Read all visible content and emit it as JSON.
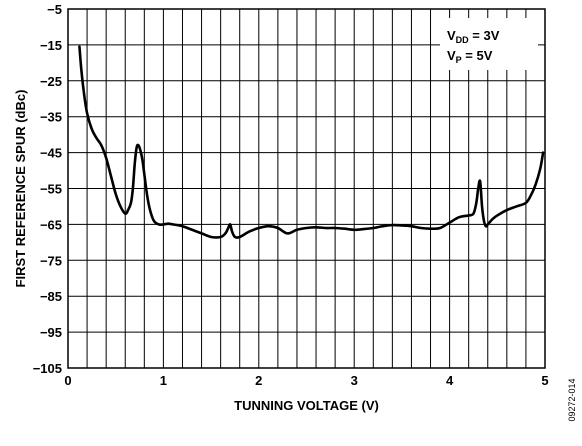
{
  "chart_data": {
    "type": "line",
    "xlabel": "TUNNING VOLTAGE (V)",
    "ylabel": "FIRST REFERENCE SPUR (dBc)",
    "xlim": [
      0,
      5
    ],
    "ylim": [
      -105,
      -5
    ],
    "x_ticks": [
      "0",
      "1",
      "2",
      "3",
      "4",
      "5"
    ],
    "y_ticks": [
      "−5",
      "−15",
      "−25",
      "−35",
      "−45",
      "−55",
      "−65",
      "−75",
      "−85",
      "−95",
      "−105"
    ],
    "grid": true,
    "legend": {
      "placement": "top-right",
      "lines": [
        {
          "main": "V",
          "sub": "DD",
          "rest": " = 3V"
        },
        {
          "main": "V",
          "sub": "P",
          "rest": " = 5V"
        }
      ]
    },
    "series": [
      {
        "x": [
          0.12,
          0.14,
          0.17,
          0.2,
          0.25,
          0.3,
          0.35,
          0.4,
          0.45,
          0.5,
          0.55,
          0.6,
          0.63,
          0.66,
          0.68,
          0.7,
          0.72,
          0.74,
          0.76,
          0.78,
          0.8,
          0.83,
          0.86,
          0.9,
          0.95,
          1.0,
          1.05,
          1.1,
          1.2,
          1.3,
          1.4,
          1.5,
          1.6,
          1.65,
          1.68,
          1.7,
          1.72,
          1.75,
          1.8,
          1.9,
          2.0,
          2.1,
          2.2,
          2.3,
          2.4,
          2.5,
          2.6,
          2.7,
          2.8,
          2.9,
          3.0,
          3.1,
          3.2,
          3.3,
          3.4,
          3.5,
          3.6,
          3.7,
          3.8,
          3.9,
          4.0,
          4.1,
          4.2,
          4.25,
          4.28,
          4.3,
          4.32,
          4.34,
          4.36,
          4.38,
          4.4,
          4.45,
          4.5,
          4.6,
          4.7,
          4.8,
          4.85,
          4.9,
          4.95,
          4.98
        ],
        "y": [
          -15.5,
          -22,
          -29,
          -34,
          -38.5,
          -41,
          -43,
          -46.5,
          -51.5,
          -56.5,
          -60,
          -62,
          -61,
          -59,
          -55,
          -48,
          -43.5,
          -43,
          -44.5,
          -47,
          -51,
          -57,
          -61,
          -64,
          -65,
          -65,
          -64.8,
          -65,
          -65.5,
          -66.5,
          -67.5,
          -68.5,
          -68.5,
          -67.5,
          -66,
          -65,
          -67,
          -68.5,
          -68.5,
          -67,
          -66,
          -65.5,
          -66,
          -67.5,
          -66.5,
          -66,
          -65.8,
          -66,
          -66,
          -66.2,
          -66.5,
          -66.3,
          -66,
          -65.5,
          -65.2,
          -65.3,
          -65.5,
          -66,
          -66.2,
          -66,
          -64.5,
          -63,
          -62.5,
          -62,
          -59,
          -55,
          -53,
          -60,
          -64,
          -65.5,
          -65,
          -63.5,
          -62.5,
          -61,
          -60,
          -59,
          -57,
          -54,
          -49.5,
          -45
        ]
      }
    ]
  },
  "figure_id": "09272-014"
}
